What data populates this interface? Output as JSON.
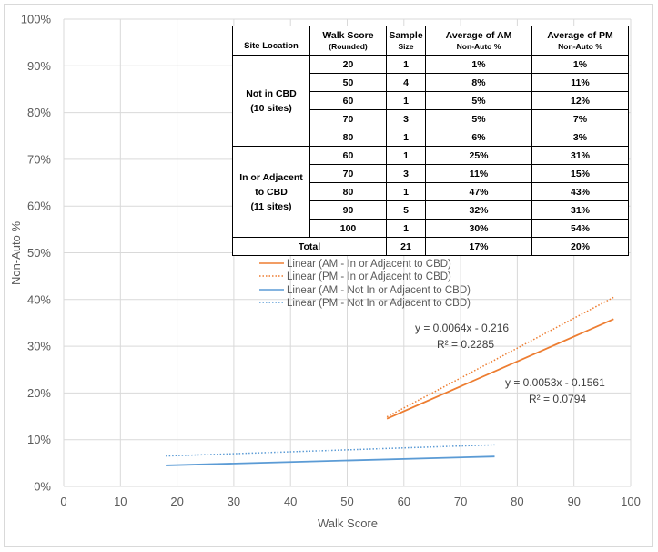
{
  "chart_data": {
    "type": "line",
    "xlabel": "Walk Score",
    "ylabel": "Non-Auto %",
    "xlim": [
      0,
      100
    ],
    "ylim": [
      0,
      1
    ],
    "x_ticks": [
      "0",
      "10",
      "20",
      "30",
      "40",
      "50",
      "60",
      "70",
      "80",
      "90",
      "100"
    ],
    "y_ticks": [
      "0%",
      "10%",
      "20%",
      "30%",
      "40%",
      "50%",
      "60%",
      "70%",
      "80%",
      "90%",
      "100%"
    ],
    "grid": true,
    "legend_position": "center",
    "series": [
      {
        "name": "Linear (AM - In or Adjacent to CBD)",
        "color": "#ed7d31",
        "style": "solid",
        "x": [
          57,
          97
        ],
        "y": [
          0.1448,
          0.3581
        ]
      },
      {
        "name": "Linear (PM - In or Adjacent to CBD)",
        "color": "#ed7d31",
        "style": "dotted",
        "x": [
          57,
          97
        ],
        "y": [
          0.1488,
          0.4048
        ]
      },
      {
        "name": "Linear (AM - Not In or Adjacent to CBD)",
        "color": "#5b9bd5",
        "style": "solid",
        "x": [
          18,
          76
        ],
        "y": [
          0.045,
          0.064
        ]
      },
      {
        "name": "Linear (PM - Not In or Adjacent to CBD)",
        "color": "#5b9bd5",
        "style": "dotted",
        "x": [
          18,
          76
        ],
        "y": [
          0.065,
          0.089
        ]
      }
    ],
    "annotations": [
      {
        "line1": "y = 0.0064x - 0.216",
        "line2": "R² = 0.2285"
      },
      {
        "line1": "y = 0.0053x - 0.1561",
        "line2": "R² = 0.0794"
      }
    ]
  },
  "table": {
    "headers": {
      "site_location": "Site Location",
      "walk_score": "Walk Score",
      "walk_score_sub": "(Rounded)",
      "sample": "Sample",
      "sample_sub": "Size",
      "avg_am": "Average of AM",
      "avg_am_sub": "Non-Auto %",
      "avg_pm": "Average of PM",
      "avg_pm_sub": "Non-Auto %"
    },
    "groups": [
      {
        "label_line1": "Not in CBD",
        "label_line2": "(10 sites)",
        "label_line3": "",
        "rows": [
          {
            "walk": "20",
            "n": "1",
            "am": "1%",
            "pm": "1%"
          },
          {
            "walk": "50",
            "n": "4",
            "am": "8%",
            "pm": "11%"
          },
          {
            "walk": "60",
            "n": "1",
            "am": "5%",
            "pm": "12%"
          },
          {
            "walk": "70",
            "n": "3",
            "am": "5%",
            "pm": "7%"
          },
          {
            "walk": "80",
            "n": "1",
            "am": "6%",
            "pm": "3%"
          }
        ]
      },
      {
        "label_line1": "In or Adjacent",
        "label_line2": "to CBD",
        "label_line3": "(11 sites)",
        "rows": [
          {
            "walk": "60",
            "n": "1",
            "am": "25%",
            "pm": "31%"
          },
          {
            "walk": "70",
            "n": "3",
            "am": "11%",
            "pm": "15%"
          },
          {
            "walk": "80",
            "n": "1",
            "am": "47%",
            "pm": "43%"
          },
          {
            "walk": "90",
            "n": "5",
            "am": "32%",
            "pm": "31%"
          },
          {
            "walk": "100",
            "n": "1",
            "am": "30%",
            "pm": "54%"
          }
        ]
      }
    ],
    "total": {
      "label": "Total",
      "n": "21",
      "am": "17%",
      "pm": "20%"
    }
  }
}
